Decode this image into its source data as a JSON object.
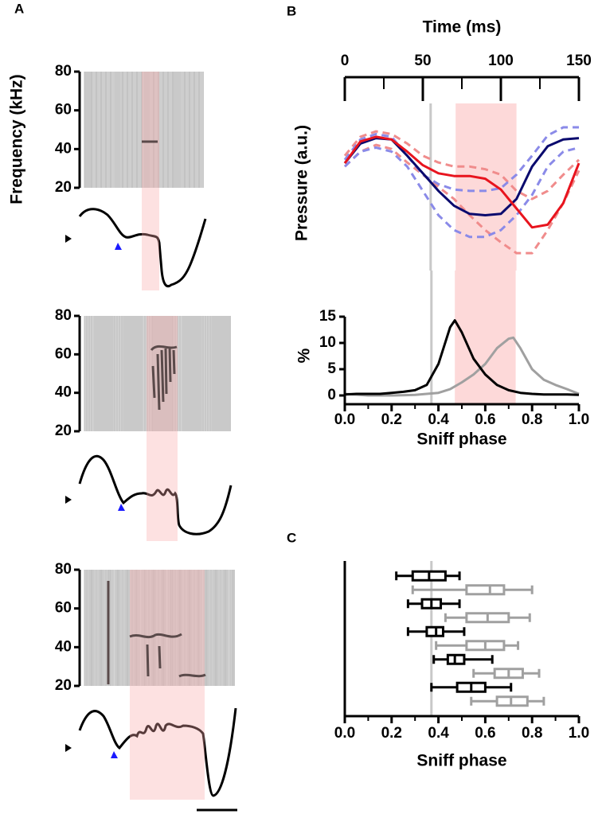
{
  "panel_labels": [
    "A",
    "B",
    "C"
  ],
  "chart_data": [
    {
      "type": "spectrogram",
      "ylabel": "Frequency (kHz)",
      "ylim": [
        20,
        80
      ],
      "yticks": [
        20,
        40,
        60,
        80
      ]
    },
    {
      "type": "spectrogram",
      "ylim": [
        20,
        80
      ],
      "yticks": [
        20,
        40,
        60,
        80
      ]
    },
    {
      "type": "spectrogram",
      "ylim": [
        20,
        80
      ],
      "yticks": [
        20,
        40,
        60,
        80
      ]
    },
    {
      "type": "line",
      "xlabel": "Time (ms)",
      "ylabel": "Pressure (a.u.)",
      "xaxis": "top",
      "xlim": [
        0,
        150
      ],
      "xticks": [
        0,
        50,
        100,
        150
      ],
      "xminorticks": [
        25,
        75,
        125
      ],
      "ylim": [
        0,
        1
      ],
      "reference_line": 55,
      "shade": [
        71,
        110
      ],
      "x": [
        0,
        10,
        20,
        30,
        40,
        50,
        60,
        70,
        80,
        90,
        100,
        110,
        120,
        130,
        140,
        150
      ],
      "series": [
        {
          "color": "#f08c8c",
          "dash": true,
          "values": [
            0.79,
            0.93,
            0.97,
            0.95,
            0.88,
            0.79,
            0.74,
            0.71,
            0.71,
            0.69,
            0.65,
            0.53,
            0.47,
            0.53,
            0.65,
            0.76
          ]
        },
        {
          "color": "#f08c8c",
          "dash": true,
          "values": [
            0.71,
            0.82,
            0.87,
            0.84,
            0.74,
            0.65,
            0.56,
            0.47,
            0.35,
            0.24,
            0.15,
            0.07,
            0.07,
            0.24,
            0.44,
            0.68
          ]
        },
        {
          "color": "#8a8ae8",
          "dash": true,
          "values": [
            0.76,
            0.91,
            0.95,
            0.93,
            0.79,
            0.65,
            0.58,
            0.54,
            0.53,
            0.53,
            0.55,
            0.65,
            0.79,
            0.94,
            1.0,
            1.0
          ]
        },
        {
          "color": "#8a8ae8",
          "dash": true,
          "values": [
            0.71,
            0.82,
            0.85,
            0.82,
            0.71,
            0.53,
            0.35,
            0.24,
            0.19,
            0.19,
            0.24,
            0.35,
            0.5,
            0.71,
            0.82,
            0.85
          ]
        },
        {
          "color": "#0a0a6e",
          "values": [
            0.735,
            0.88,
            0.92,
            0.91,
            0.79,
            0.66,
            0.53,
            0.42,
            0.36,
            0.35,
            0.36,
            0.47,
            0.71,
            0.86,
            0.91,
            0.92
          ]
        },
        {
          "color": "#e8141e",
          "values": [
            0.735,
            0.895,
            0.93,
            0.91,
            0.82,
            0.72,
            0.66,
            0.64,
            0.64,
            0.62,
            0.54,
            0.4,
            0.26,
            0.28,
            0.44,
            0.735
          ]
        }
      ]
    },
    {
      "type": "line",
      "xlabel": "Sniff phase",
      "ylabel": "%",
      "xlim": [
        0,
        1
      ],
      "xticks": [
        {
          "value": 0,
          "label": "0.0"
        },
        {
          "value": 0.2,
          "label": "0.2"
        },
        {
          "value": 0.4,
          "label": "0.4"
        },
        {
          "value": 0.6,
          "label": "0.6"
        },
        {
          "value": 0.8,
          "label": "0.8"
        },
        {
          "value": 1,
          "label": "1.0"
        }
      ],
      "xminorticks": [
        0.1,
        0.3,
        0.5,
        0.7,
        0.9
      ],
      "ylim": [
        0,
        15
      ],
      "yticks": [
        0,
        5,
        10,
        15
      ],
      "reference_line": 0.37,
      "shade": [
        0.47,
        0.73
      ],
      "series": [
        {
          "color": "#a0a0a0",
          "x": [
            0,
            0.1,
            0.2,
            0.3,
            0.4,
            0.45,
            0.5,
            0.55,
            0.6,
            0.65,
            0.7,
            0.72,
            0.75,
            0.8,
            0.85,
            0.9,
            0.95,
            1.0
          ],
          "values": [
            0.3,
            0,
            0,
            0.1,
            0.5,
            1.2,
            2.5,
            4,
            6,
            9,
            10.8,
            11,
            9,
            5,
            3,
            2,
            1.2,
            0.3
          ]
        },
        {
          "color": "#000000",
          "x": [
            0,
            0.05,
            0.1,
            0.15,
            0.2,
            0.25,
            0.3,
            0.35,
            0.4,
            0.45,
            0.47,
            0.5,
            0.55,
            0.6,
            0.65,
            0.7,
            0.75,
            0.8,
            0.85,
            0.9,
            0.95,
            1.0
          ],
          "values": [
            0.2,
            0.3,
            0.3,
            0.3,
            0.5,
            0.7,
            1.0,
            2,
            6,
            13,
            14.3,
            12,
            7,
            4,
            2,
            1,
            0.5,
            0.3,
            0.2,
            0.2,
            0.2,
            0.1
          ]
        }
      ]
    },
    {
      "type": "box",
      "xlabel": "Sniff phase",
      "xlim": [
        0,
        1
      ],
      "xticks": [
        {
          "value": 0,
          "label": "0.0"
        },
        {
          "value": 0.2,
          "label": "0.2"
        },
        {
          "value": 0.4,
          "label": "0.4"
        },
        {
          "value": 0.6,
          "label": "0.6"
        },
        {
          "value": 0.8,
          "label": "0.8"
        },
        {
          "value": 1,
          "label": "1.0"
        }
      ],
      "xminorticks": [
        0.1,
        0.3,
        0.5,
        0.7,
        0.9
      ],
      "reference_line": 0.37,
      "boxes": [
        {
          "color": "#000000",
          "whislo": 0.22,
          "q1": 0.29,
          "med": 0.36,
          "q3": 0.43,
          "whishi": 0.49
        },
        {
          "color": "#a0a0a0",
          "whislo": 0.29,
          "q1": 0.52,
          "med": 0.62,
          "q3": 0.68,
          "whishi": 0.8
        },
        {
          "color": "#000000",
          "whislo": 0.27,
          "q1": 0.33,
          "med": 0.37,
          "q3": 0.41,
          "whishi": 0.49
        },
        {
          "color": "#a0a0a0",
          "whislo": 0.43,
          "q1": 0.52,
          "med": 0.61,
          "q3": 0.7,
          "whishi": 0.79
        },
        {
          "color": "#000000",
          "whislo": 0.27,
          "q1": 0.35,
          "med": 0.39,
          "q3": 0.42,
          "whishi": 0.51
        },
        {
          "color": "#a0a0a0",
          "whislo": 0.39,
          "q1": 0.52,
          "med": 0.6,
          "q3": 0.68,
          "whishi": 0.74
        },
        {
          "color": "#000000",
          "whislo": 0.38,
          "q1": 0.44,
          "med": 0.47,
          "q3": 0.51,
          "whishi": 0.63
        },
        {
          "color": "#a0a0a0",
          "whislo": 0.55,
          "q1": 0.64,
          "med": 0.7,
          "q3": 0.76,
          "whishi": 0.83
        },
        {
          "color": "#000000",
          "whislo": 0.37,
          "q1": 0.48,
          "med": 0.54,
          "q3": 0.6,
          "whishi": 0.71
        },
        {
          "color": "#a0a0a0",
          "whislo": 0.54,
          "q1": 0.65,
          "med": 0.71,
          "q3": 0.78,
          "whishi": 0.85
        }
      ]
    }
  ]
}
